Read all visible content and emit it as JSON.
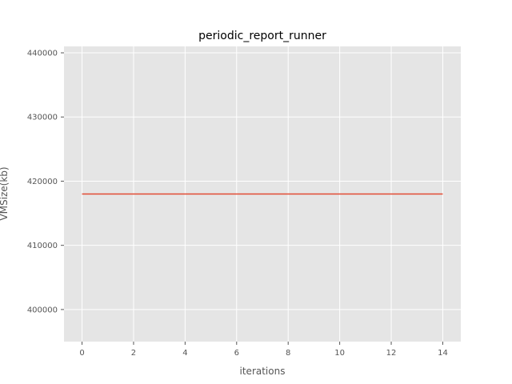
{
  "chart_data": {
    "type": "line",
    "title": "periodic_report_runner",
    "xlabel": "iterations",
    "ylabel": "VMSize(kb)",
    "x": [
      0,
      1,
      2,
      3,
      4,
      5,
      6,
      7,
      8,
      9,
      10,
      11,
      12,
      13,
      14
    ],
    "series": [
      {
        "values": [
          418000,
          418000,
          418000,
          418000,
          418000,
          418000,
          418000,
          418000,
          418000,
          418000,
          418000,
          418000,
          418000,
          418000,
          418000
        ],
        "color": "#E24A33"
      }
    ],
    "xlim": [
      -0.7,
      14.7
    ],
    "ylim": [
      395000,
      441000
    ],
    "xticks": [
      0,
      2,
      4,
      6,
      8,
      10,
      12,
      14
    ],
    "yticks": [
      400000,
      410000,
      420000,
      430000,
      440000
    ],
    "grid": true,
    "style": "ggplot",
    "background": "#E5E5E5",
    "grid_color": "#FFFFFF"
  }
}
